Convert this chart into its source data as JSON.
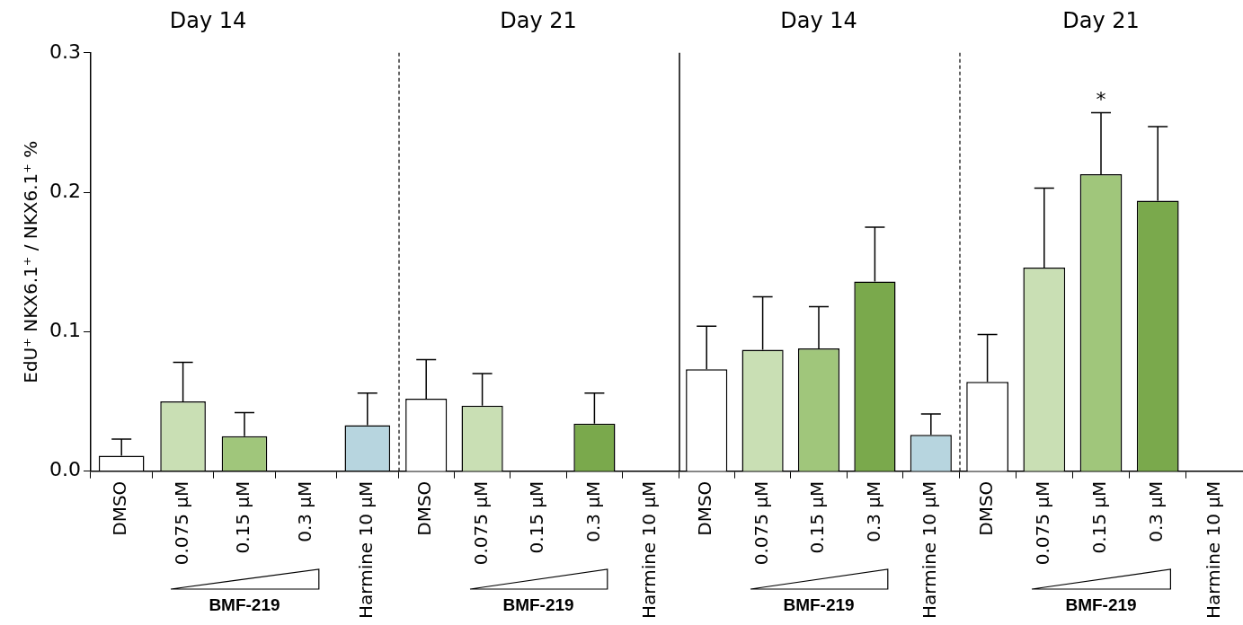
{
  "chart_data": [
    {
      "type": "bar",
      "title": "Day 14",
      "ylabel": "EdU⁺ NKX6.1⁺ / NKX6.1⁺ %",
      "categories": [
        "DMSO",
        "0.075 µM",
        "0.15 µM",
        "0.3 µM",
        "Harmine 10 µM"
      ],
      "values": [
        0.011,
        0.05,
        0.025,
        null,
        0.033
      ],
      "errors": [
        0.012,
        0.028,
        0.017,
        null,
        0.023
      ],
      "colors": [
        "#ffffff",
        "#c9dfb4",
        "#a0c67b",
        null,
        "#b7d5df"
      ],
      "ylim": [
        0,
        0.3
      ],
      "yticks": [
        {
          "value": 0,
          "label": "0.0"
        },
        {
          "value": 0.1,
          "label": "0.1"
        },
        {
          "value": 0.2,
          "label": "0.2"
        },
        {
          "value": 0.3,
          "label": "0.3"
        }
      ],
      "annotations": [
        "BMF-219"
      ]
    },
    {
      "type": "bar",
      "title": "Day 21",
      "categories": [
        "DMSO",
        "0.075 µM",
        "0.15 µM",
        "0.3 µM",
        "Harmine 10 µM"
      ],
      "values": [
        0.052,
        0.047,
        null,
        0.034,
        null
      ],
      "errors": [
        0.028,
        0.023,
        null,
        0.022,
        null
      ],
      "colors": [
        "#ffffff",
        "#c9dfb4",
        null,
        "#7aa94c",
        null
      ],
      "ylim": [
        0,
        0.3
      ],
      "tick_labels": "x",
      "annotations": [
        "BMF-219"
      ]
    },
    {
      "type": "bar",
      "title": "Day 14",
      "categories": [
        "DMSO",
        "0.075 µM",
        "0.15 µM",
        "0.3 µM",
        "Harmine 10 µM"
      ],
      "values": [
        0.073,
        0.087,
        0.088,
        0.136,
        0.026
      ],
      "errors": [
        0.031,
        0.038,
        0.03,
        0.039,
        0.015
      ],
      "colors": [
        "#ffffff",
        "#c9dfb4",
        "#a0c67b",
        "#7aa94c",
        "#b7d5df"
      ],
      "ylim": [
        0,
        0.3
      ],
      "tick_labels": "x",
      "annotations": [
        "BMF-219"
      ]
    },
    {
      "type": "bar",
      "title": "Day 21",
      "categories": [
        "DMSO",
        "0.075 µM",
        "0.15 µM",
        "0.3 µM",
        "Harmine 10 µM"
      ],
      "values": [
        0.064,
        0.146,
        0.213,
        0.194,
        null
      ],
      "errors": [
        0.034,
        0.057,
        0.044,
        0.053,
        null
      ],
      "colors": [
        "#ffffff",
        "#c9dfb4",
        "#a0c67b",
        "#7aa94c",
        null
      ],
      "ylim": [
        0,
        0.3
      ],
      "tick_labels": "x",
      "annotations": [
        "BMF-219",
        {
          "text": "*",
          "x": "0.15 µM",
          "y": 0.257
        }
      ]
    }
  ]
}
